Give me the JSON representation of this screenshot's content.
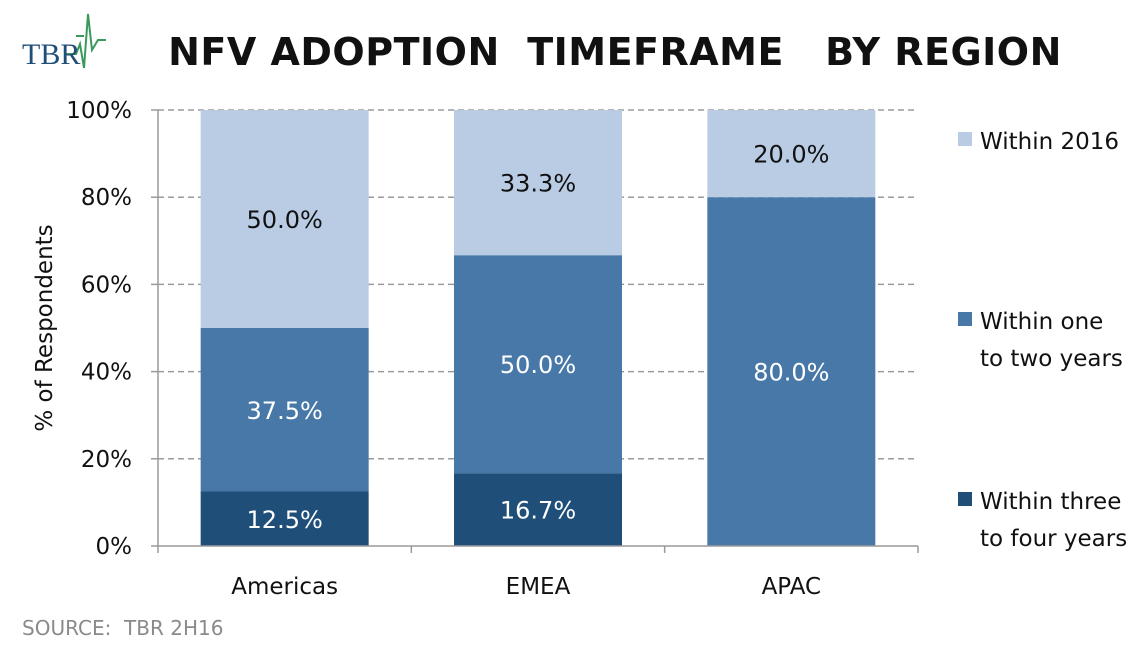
{
  "logo": {
    "text": "TBR"
  },
  "colors": {
    "within_2016": "#b9cce4",
    "one_to_two": "#4878a8",
    "three_to_four": "#1f4f79",
    "logo_green": "#3a9a5c",
    "logo_blue": "#1f4e79",
    "grid": "#9a9a9a"
  },
  "chart_data": {
    "type": "bar",
    "stacked": true,
    "title": "NFV ADOPTION  TIMEFRAME   BY REGION",
    "xlabel": "",
    "ylabel": "% of Respondents",
    "categories": [
      "Americas",
      "EMEA",
      "APAC"
    ],
    "ylim": [
      0,
      100
    ],
    "yticks": [
      "0%",
      "20%",
      "40%",
      "60%",
      "80%",
      "100%"
    ],
    "grid": true,
    "legend_position": "right",
    "series": [
      {
        "name": "Within three to four years",
        "values": [
          12.5,
          16.7,
          0
        ],
        "labels": [
          "12.5%",
          "16.7%",
          ""
        ]
      },
      {
        "name": "Within one to two years",
        "values": [
          37.5,
          50.0,
          80.0
        ],
        "labels": [
          "37.5%",
          "50.0%",
          "80.0%"
        ]
      },
      {
        "name": "Within 2016",
        "values": [
          50.0,
          33.3,
          20.0
        ],
        "labels": [
          "50.0%",
          "33.3%",
          "20.0%"
        ]
      }
    ]
  },
  "source": "SOURCE:  TBR 2H16"
}
